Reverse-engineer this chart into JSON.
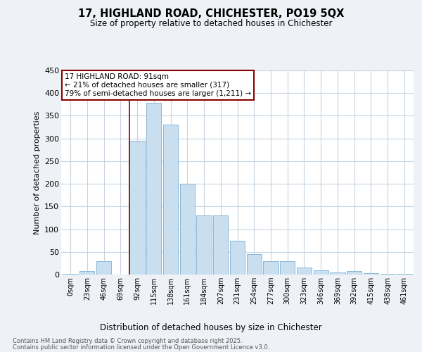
{
  "title_line1": "17, HIGHLAND ROAD, CHICHESTER, PO19 5QX",
  "title_line2": "Size of property relative to detached houses in Chichester",
  "xlabel": "Distribution of detached houses by size in Chichester",
  "ylabel": "Number of detached properties",
  "categories": [
    "0sqm",
    "23sqm",
    "46sqm",
    "69sqm",
    "92sqm",
    "115sqm",
    "138sqm",
    "161sqm",
    "184sqm",
    "207sqm",
    "231sqm",
    "254sqm",
    "277sqm",
    "300sqm",
    "323sqm",
    "346sqm",
    "369sqm",
    "392sqm",
    "415sqm",
    "438sqm",
    "461sqm"
  ],
  "values": [
    2,
    8,
    30,
    0,
    295,
    378,
    330,
    200,
    130,
    130,
    75,
    45,
    30,
    30,
    15,
    10,
    5,
    8,
    3,
    2,
    2
  ],
  "bar_color": "#c9dff0",
  "bar_edge_color": "#8bb8d8",
  "annotation_line1": "17 HIGHLAND ROAD: 91sqm",
  "annotation_line2": "← 21% of detached houses are smaller (317)",
  "annotation_line3": "79% of semi-detached houses are larger (1,211) →",
  "vline_x_index": 4,
  "background_color": "#eef2f7",
  "plot_bg_color": "#ffffff",
  "grid_color": "#c8d4e0",
  "footnote1": "Contains HM Land Registry data © Crown copyright and database right 2025.",
  "footnote2": "Contains public sector information licensed under the Open Government Licence v3.0.",
  "ylim": [
    0,
    450
  ],
  "yticks": [
    0,
    50,
    100,
    150,
    200,
    250,
    300,
    350,
    400,
    450
  ]
}
